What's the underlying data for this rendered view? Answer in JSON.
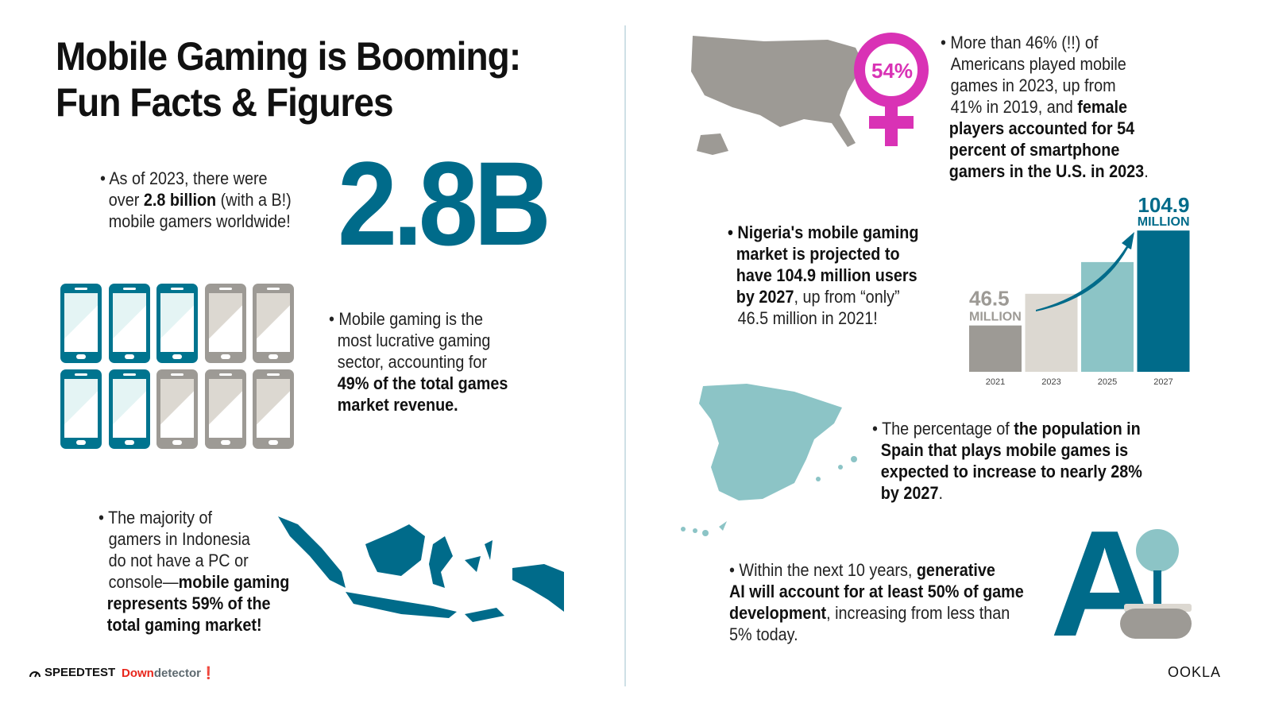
{
  "title": {
    "line1": "Mobile Gaming is Booming:",
    "line2": "Fun Facts & Figures"
  },
  "facts": {
    "gamers": {
      "pre": "• As of 2023, there were",
      "l2a": "over ",
      "l2b": "2.8 billion",
      "l2c": " (with a B!)",
      "l3": "mobile gamers worldwide!",
      "big": "2.8B"
    },
    "revenue": {
      "l1": "• Mobile gaming is the",
      "l2": "most lucrative gaming",
      "l3": "sector, accounting for",
      "l4": "49% of the total games",
      "l5": "market revenue.",
      "phones_filled": 5,
      "phones_total": 10
    },
    "indonesia": {
      "l1": "• The majority of",
      "l2": "gamers in Indonesia",
      "l3": "do not have a PC or",
      "l4a": "console—",
      "l4b": "mobile gaming",
      "l5": "represents 59% of the",
      "l6": "total gaming market!"
    },
    "usa": {
      "l1": "• More than 46% (!!) of",
      "l2": "Americans played mobile",
      "l3": "games in 2023, up from",
      "l4a": "41% in 2019, and ",
      "l4b": "female",
      "l5": "players accounted for 54",
      "l6": "percent of smartphone",
      "l7": "gamers in the U.S. in 2023",
      "l7end": ".",
      "badge": "54%"
    },
    "nigeria": {
      "l1": "• Nigeria's mobile gaming",
      "l2": "market is projected to",
      "l3": "have 104.9 million users",
      "l4a": "by 2027",
      "l4b": ", up from “only”",
      "l5": "46.5 million in 2021!"
    },
    "spain": {
      "l1a": "• The percentage of ",
      "l1b": "the population in",
      "l2": "Spain that plays mobile games is",
      "l3": "expected to increase to nearly 28%",
      "l4a": "by 2027",
      "l4b": "."
    },
    "ai": {
      "l1a": "• Within the next 10 years, ",
      "l1b": "generative",
      "l2": "AI will account for at least 50% of game",
      "l3a": "development",
      "l3b": ", increasing from less than",
      "l4": "5% today.",
      "logo_text": "A"
    }
  },
  "chart_data": {
    "type": "bar",
    "categories": [
      "2021",
      "2023",
      "2025",
      "2027"
    ],
    "values": [
      46.5,
      66,
      85.5,
      104.9
    ],
    "ylim": [
      18,
      105
    ],
    "labels": [
      {
        "value": "46.5",
        "unit": "MILLION"
      },
      null,
      null,
      {
        "value": "104.9",
        "unit": "MILLION"
      }
    ],
    "colors": [
      "#9d9a95",
      "#dcd8d1",
      "#8cc4c6",
      "#006b8a"
    ]
  },
  "colors": {
    "accent": "#006b8a",
    "magenta": "#d932b5",
    "grey": "#9d9a95",
    "teal_light": "#8cc4c6"
  },
  "footer": {
    "speedtest": "SPEEDTEST",
    "down": "Down",
    "detector": "detector",
    "ookla": "OOKLA"
  }
}
